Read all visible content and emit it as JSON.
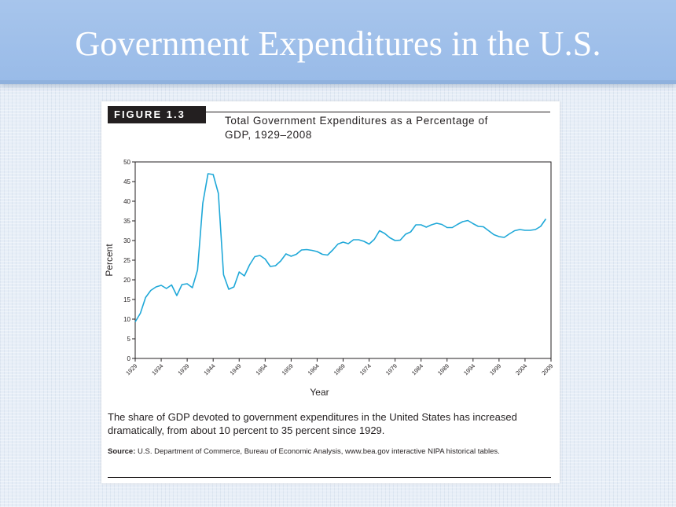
{
  "slide": {
    "title": "Government Expenditures in the U.S."
  },
  "figure": {
    "label": "FIGURE 1.3",
    "title_line1": "Total Government Expenditures as a Percentage of",
    "title_line2": "GDP, 1929–2008",
    "caption": "The share of GDP devoted to government expenditures in the United States has increased dramatically, from about 10 percent to 35 percent since 1929.",
    "source_label": "Source:",
    "source_text": "U.S. Department of Commerce, Bureau of Economic Analysis, www.bea.gov interactive NIPA historical tables."
  },
  "colors": {
    "line": "#1fa8d8",
    "ink": "#231f20",
    "header": "#a7c5ec"
  },
  "chart_data": {
    "type": "line",
    "xlabel": "Year",
    "ylabel": "Percent",
    "ylim": [
      0,
      50
    ],
    "xlim": [
      1929,
      2009
    ],
    "yticks": [
      0,
      5,
      10,
      15,
      20,
      25,
      30,
      35,
      40,
      45,
      50
    ],
    "xticks": [
      1929,
      1934,
      1939,
      1944,
      1949,
      1954,
      1959,
      1964,
      1969,
      1974,
      1979,
      1984,
      1989,
      1994,
      1999,
      2004,
      2009
    ],
    "grid": false,
    "x": [
      1929,
      1930,
      1931,
      1932,
      1933,
      1934,
      1935,
      1936,
      1937,
      1938,
      1939,
      1940,
      1941,
      1942,
      1943,
      1944,
      1945,
      1946,
      1947,
      1948,
      1949,
      1950,
      1951,
      1952,
      1953,
      1954,
      1955,
      1956,
      1957,
      1958,
      1959,
      1960,
      1961,
      1962,
      1963,
      1964,
      1965,
      1966,
      1967,
      1968,
      1969,
      1970,
      1971,
      1972,
      1973,
      1974,
      1975,
      1976,
      1977,
      1978,
      1979,
      1980,
      1981,
      1982,
      1983,
      1984,
      1985,
      1986,
      1987,
      1988,
      1989,
      1990,
      1991,
      1992,
      1993,
      1994,
      1995,
      1996,
      1997,
      1998,
      1999,
      2000,
      2001,
      2002,
      2003,
      2004,
      2005,
      2006,
      2007,
      2008
    ],
    "y": [
      9.3,
      11.5,
      15.5,
      17.3,
      18.2,
      18.6,
      17.8,
      18.7,
      16.0,
      18.8,
      19.0,
      18.0,
      22.5,
      39.5,
      47.0,
      46.8,
      42.0,
      21.3,
      17.6,
      18.2,
      22.0,
      21.0,
      23.8,
      25.9,
      26.2,
      25.3,
      23.4,
      23.6,
      24.8,
      26.6,
      26.0,
      26.5,
      27.6,
      27.7,
      27.5,
      27.2,
      26.5,
      26.3,
      27.6,
      29.1,
      29.6,
      29.2,
      30.2,
      30.2,
      29.8,
      29.1,
      30.3,
      32.5,
      31.8,
      30.7,
      30.0,
      30.1,
      31.6,
      32.2,
      34.0,
      34.0,
      33.4,
      34.0,
      34.4,
      34.1,
      33.3,
      33.3,
      34.1,
      34.8,
      35.1,
      34.3,
      33.6,
      33.5,
      32.5,
      31.5,
      31.0,
      30.8,
      31.7,
      32.5,
      32.8,
      32.6,
      32.6,
      32.8,
      33.6,
      35.5
    ]
  }
}
